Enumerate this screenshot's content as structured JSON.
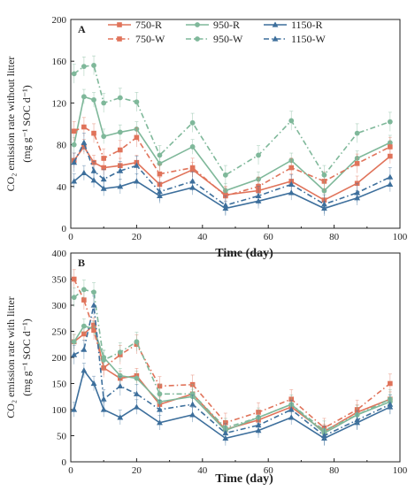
{
  "colors": {
    "750": "#e0735a",
    "950": "#7fb89a",
    "1150": "#3d6f9c"
  },
  "legend": [
    {
      "label": "750-R",
      "key": "750",
      "dash": false,
      "marker": "square"
    },
    {
      "label": "950-R",
      "key": "950",
      "dash": false,
      "marker": "circle"
    },
    {
      "label": "1150-R",
      "key": "1150",
      "dash": false,
      "marker": "triangle"
    },
    {
      "label": "750-W",
      "key": "750",
      "dash": true,
      "marker": "square"
    },
    {
      "label": "950-W",
      "key": "950",
      "dash": true,
      "marker": "circle"
    },
    {
      "label": "1150-W",
      "key": "1150",
      "dash": true,
      "marker": "triangle"
    }
  ],
  "chart_data": [
    {
      "type": "line",
      "panel_label": "A",
      "xlabel": "Time (day)",
      "ylabel_line1": "CO₂ emission rate without litter",
      "ylabel_line2": "(mg g⁻¹ SOC d⁻¹)",
      "xlim": [
        0,
        100
      ],
      "ylim": [
        0,
        200
      ],
      "xticks": [
        "0",
        "20",
        "40",
        "60",
        "80",
        "100"
      ],
      "yticks": [
        "0",
        "40",
        "80",
        "120",
        "160",
        "200"
      ],
      "x": [
        1,
        4,
        7,
        10,
        15,
        20,
        27,
        37,
        47,
        57,
        67,
        77,
        87,
        97
      ],
      "series": [
        {
          "name": "750-R",
          "values": [
            65,
            78,
            63,
            58,
            60,
            63,
            42,
            56,
            32,
            36,
            45,
            27,
            43,
            69
          ]
        },
        {
          "name": "950-R",
          "values": [
            80,
            126,
            123,
            88,
            92,
            95,
            62,
            78,
            36,
            47,
            65,
            36,
            67,
            82
          ]
        },
        {
          "name": "1150-R",
          "values": [
            45,
            53,
            46,
            38,
            40,
            45,
            31,
            39,
            19,
            26,
            34,
            19,
            29,
            42
          ]
        },
        {
          "name": "750-W",
          "values": [
            93,
            97,
            91,
            67,
            75,
            87,
            52,
            58,
            31,
            40,
            58,
            45,
            62,
            78
          ]
        },
        {
          "name": "950-W",
          "values": [
            148,
            155,
            156,
            120,
            125,
            121,
            70,
            101,
            51,
            70,
            103,
            51,
            91,
            102
          ]
        },
        {
          "name": "1150-W",
          "values": [
            63,
            82,
            55,
            47,
            55,
            60,
            35,
            45,
            22,
            31,
            42,
            23,
            34,
            49
          ]
        }
      ]
    },
    {
      "type": "line",
      "panel_label": "B",
      "xlabel": "Time (day)",
      "ylabel_line1": "CO₂ emission rate with litter",
      "ylabel_line2": "(mg g⁻¹ SOC d⁻¹)",
      "xlim": [
        0,
        100
      ],
      "ylim": [
        0,
        400
      ],
      "xticks": [
        "0",
        "20",
        "40",
        "60",
        "80",
        "100"
      ],
      "yticks": [
        "0",
        "50",
        "100",
        "150",
        "200",
        "250",
        "300",
        "350",
        "400"
      ],
      "x": [
        1,
        4,
        7,
        10,
        15,
        20,
        27,
        37,
        47,
        57,
        67,
        77,
        87,
        97
      ],
      "series": [
        {
          "name": "750-R",
          "values": [
            230,
            245,
            262,
            180,
            160,
            165,
            110,
            130,
            62,
            80,
            105,
            58,
            95,
            120
          ]
        },
        {
          "name": "950-R",
          "values": [
            230,
            260,
            255,
            200,
            165,
            160,
            115,
            125,
            60,
            85,
            110,
            55,
            90,
            115
          ]
        },
        {
          "name": "1150-R",
          "values": [
            100,
            175,
            150,
            100,
            85,
            105,
            75,
            90,
            45,
            60,
            85,
            45,
            75,
            105
          ]
        },
        {
          "name": "750-W",
          "values": [
            350,
            310,
            252,
            180,
            205,
            225,
            145,
            148,
            75,
            95,
            120,
            65,
            100,
            150
          ]
        },
        {
          "name": "950-W",
          "values": [
            315,
            330,
            325,
            195,
            210,
            230,
            130,
            130,
            65,
            85,
            110,
            60,
            90,
            120
          ]
        },
        {
          "name": "1150-W",
          "values": [
            205,
            215,
            300,
            120,
            145,
            130,
            100,
            110,
            55,
            70,
            100,
            50,
            80,
            110
          ]
        }
      ]
    }
  ]
}
